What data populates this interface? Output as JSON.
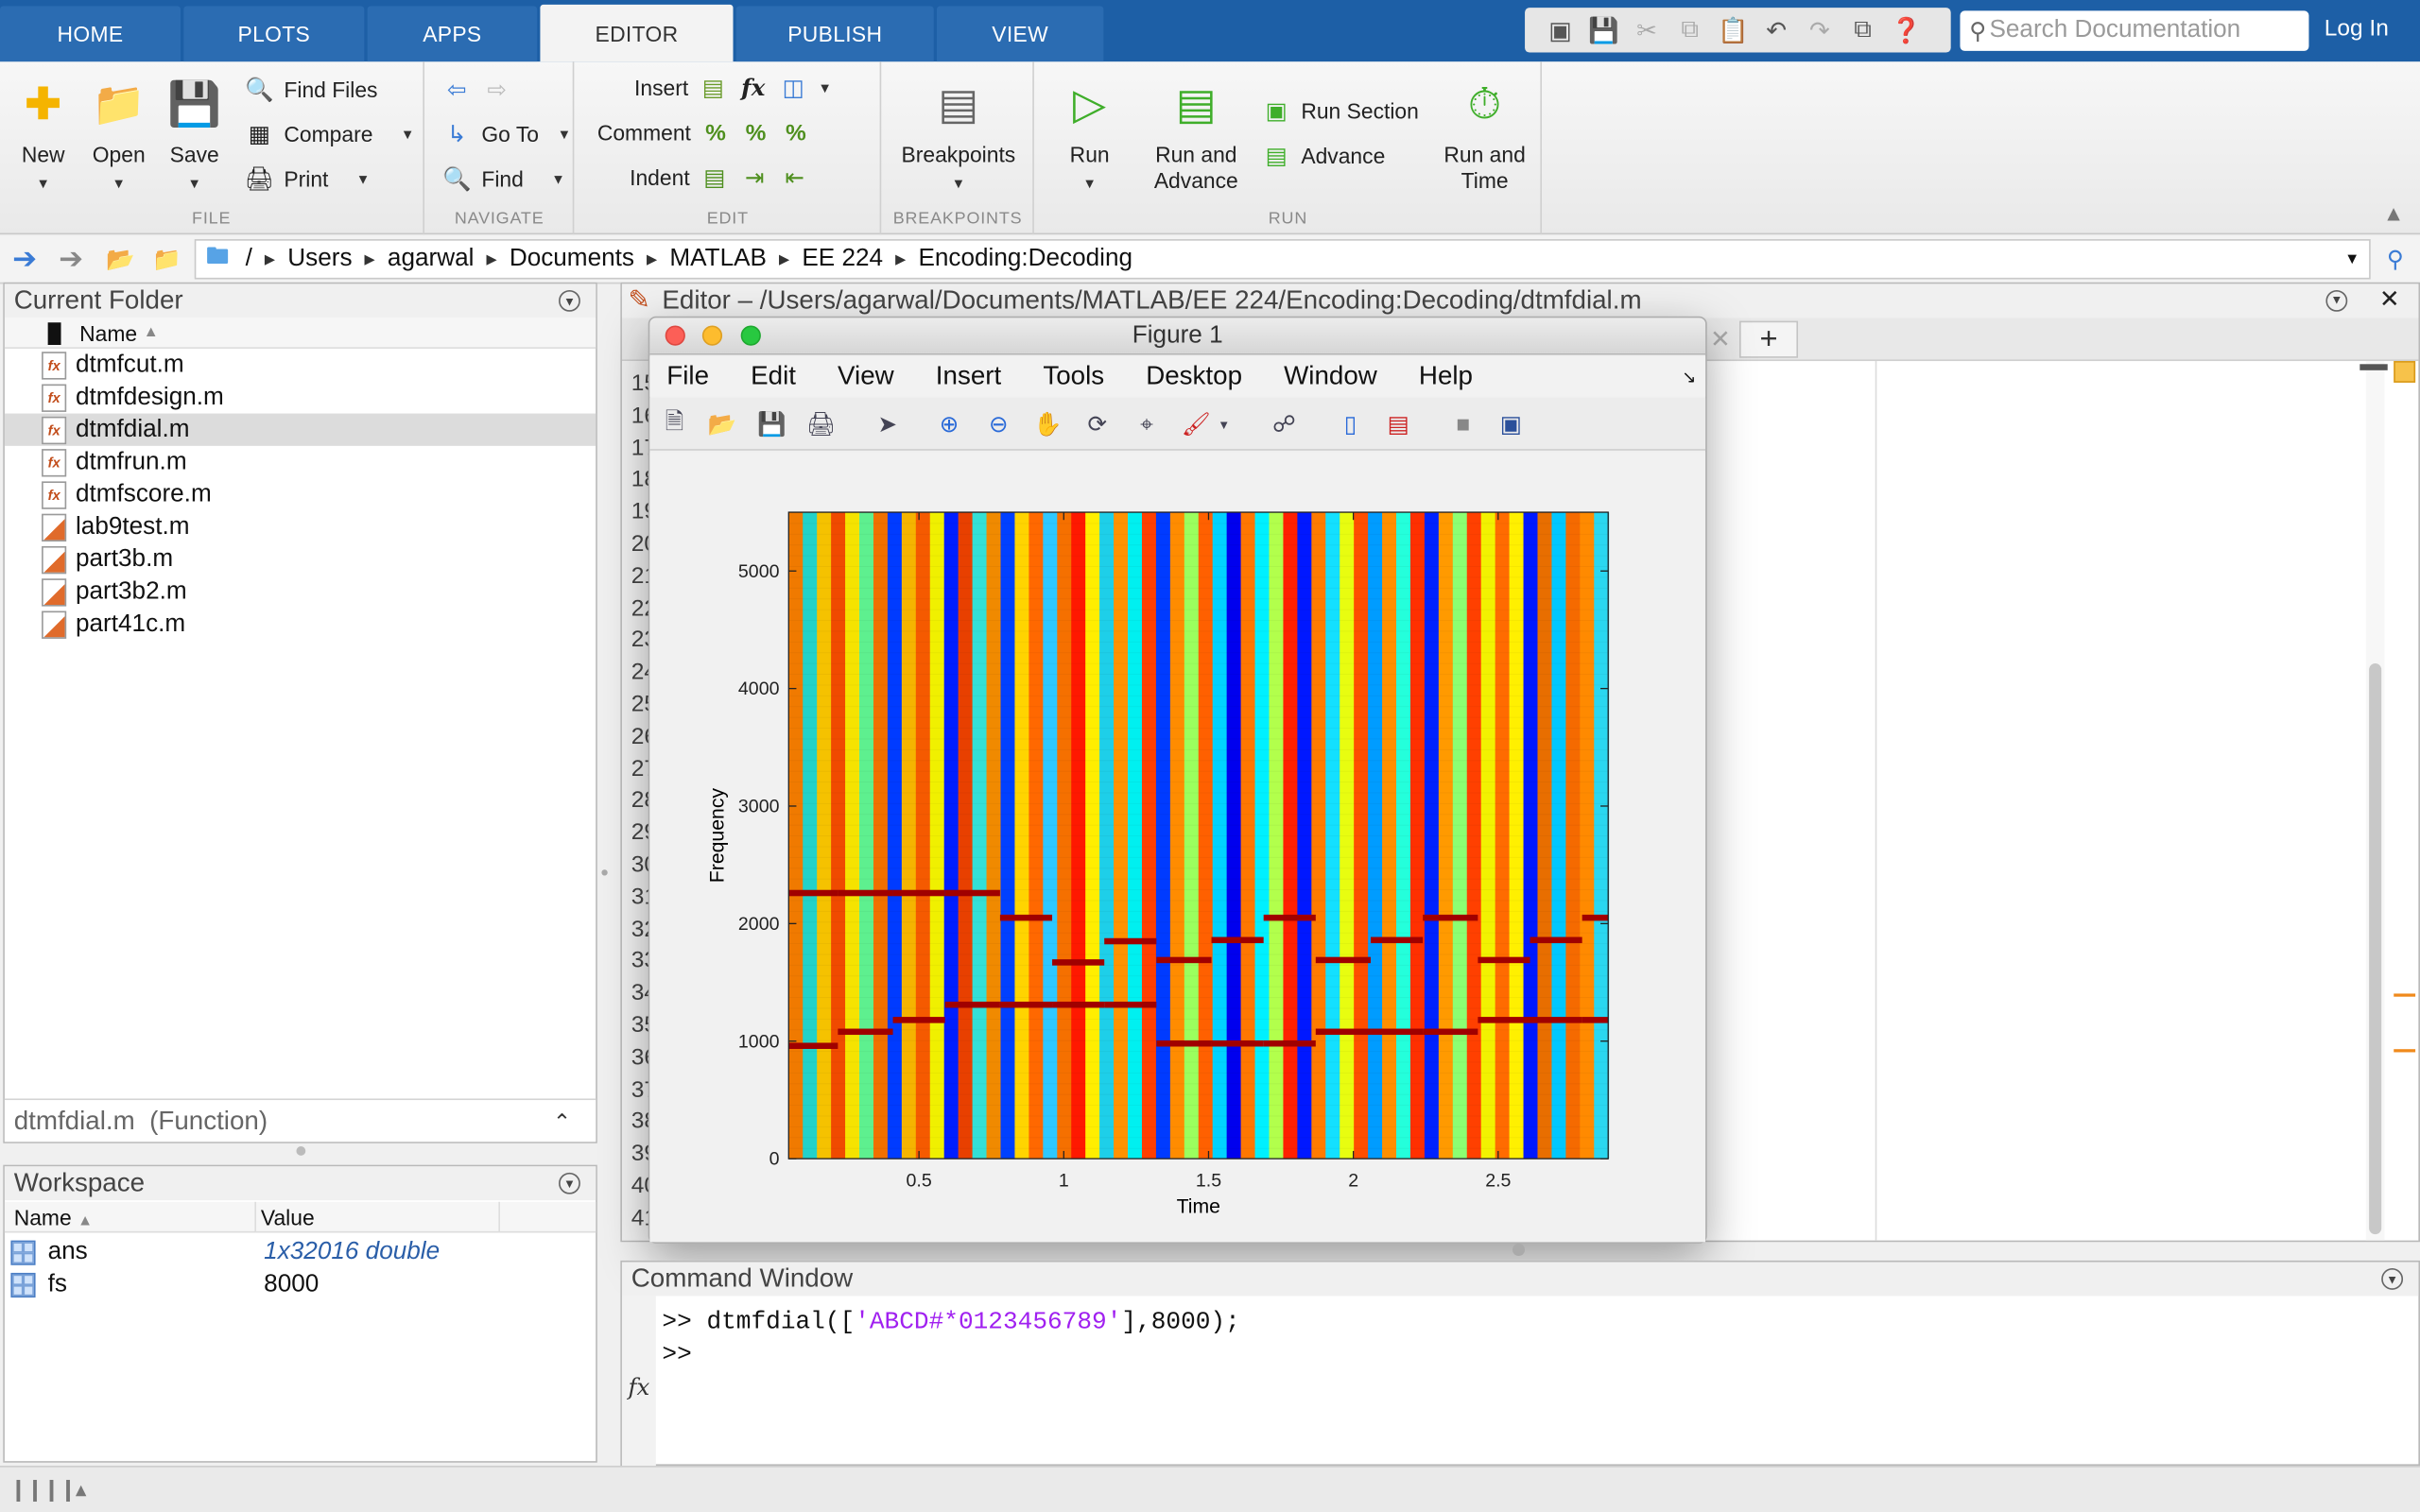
{
  "tabs": [
    {
      "label": "HOME",
      "active": false
    },
    {
      "label": "PLOTS",
      "active": false
    },
    {
      "label": "APPS",
      "active": false
    },
    {
      "label": "EDITOR",
      "active": true
    },
    {
      "label": "PUBLISH",
      "active": false
    },
    {
      "label": "VIEW",
      "active": false
    }
  ],
  "search": {
    "placeholder": "Search Documentation"
  },
  "login_label": "Log In",
  "ribbon": {
    "file": {
      "title": "FILE",
      "new": "New",
      "open": "Open",
      "save": "Save",
      "find_files": "Find Files",
      "compare": "Compare",
      "print": "Print"
    },
    "navigate": {
      "title": "NAVIGATE",
      "go_to": "Go To",
      "find": "Find"
    },
    "edit": {
      "title": "EDIT",
      "insert": "Insert",
      "comment": "Comment",
      "indent": "Indent",
      "fx": "fx"
    },
    "breakpoints": {
      "title": "BREAKPOINTS",
      "label": "Breakpoints"
    },
    "run": {
      "title": "RUN",
      "run": "Run",
      "run_advance_1": "Run and",
      "run_advance_2": "Advance",
      "run_section": "Run Section",
      "advance": "Advance",
      "run_time_1": "Run and",
      "run_time_2": "Time"
    }
  },
  "address": {
    "crumbs": [
      "/",
      "Users",
      "agarwal",
      "Documents",
      "MATLAB",
      "EE 224",
      "Encoding:Decoding"
    ]
  },
  "current_folder": {
    "title": "Current Folder",
    "column_name": "Name",
    "sort_indicator": "▲",
    "files": [
      {
        "name": "dtmfcut.m",
        "type": "function",
        "selected": false
      },
      {
        "name": "dtmfdesign.m",
        "type": "function",
        "selected": false
      },
      {
        "name": "dtmfdial.m",
        "type": "function",
        "selected": true
      },
      {
        "name": "dtmfrun.m",
        "type": "function",
        "selected": false
      },
      {
        "name": "dtmfscore.m",
        "type": "function",
        "selected": false
      },
      {
        "name": "lab9test.m",
        "type": "script",
        "selected": false
      },
      {
        "name": "part3b.m",
        "type": "script",
        "selected": false
      },
      {
        "name": "part3b2.m",
        "type": "script",
        "selected": false
      },
      {
        "name": "part41c.m",
        "type": "script",
        "selected": false
      }
    ],
    "details": "dtmfdial.m  (Function)"
  },
  "workspace": {
    "title": "Workspace",
    "col_name": "Name",
    "col_value": "Value",
    "sort_indicator": "▲",
    "vars": [
      {
        "name": "ans",
        "value": "1x32016 double",
        "italic": true
      },
      {
        "name": "fs",
        "value": "8000",
        "italic": false
      }
    ]
  },
  "editor": {
    "title": "Editor – /Users/agarwal/Documents/MATLAB/EE 224/Encoding:Decoding/dtmfdial.m",
    "add_tab": "+",
    "line_numbers": [
      "15",
      "16",
      "17",
      "18",
      "19",
      "20",
      "21",
      "22",
      "23",
      "24",
      "25",
      "26",
      "27",
      "28",
      "29",
      "30",
      "31",
      "32",
      "33",
      "34",
      "35",
      "36",
      "37",
      "38",
      "39",
      "40",
      "41"
    ],
    "line_numbers_visible": [
      "1!",
      "1(",
      "1!",
      "1!",
      "2(",
      "2:",
      "2:",
      "2:",
      "2:",
      "2!",
      "2(",
      "2:",
      "2!",
      "2!",
      "3(",
      "3:",
      "3:",
      "3:",
      "3:",
      "3!",
      "3(",
      "3:",
      "3!",
      "3!",
      "4(",
      "4:"
    ]
  },
  "figure": {
    "title": "Figure 1",
    "menu": [
      "File",
      "Edit",
      "View",
      "Insert",
      "Tools",
      "Desktop",
      "Window",
      "Help"
    ],
    "toolbar_icons": [
      "new-figure-icon",
      "open-file-icon",
      "save-figure-icon",
      "print-icon",
      "pointer-icon",
      "zoom-in-icon",
      "zoom-out-icon",
      "pan-icon",
      "rotate-3d-icon",
      "data-cursor-icon",
      "brush-icon",
      "brush-dropdown-icon",
      "link-plot-icon",
      "colorbar-icon",
      "legend-icon",
      "hide-plot-tools-icon",
      "show-plot-tools-icon"
    ]
  },
  "chart_data": {
    "type": "heatmap",
    "title": "",
    "xlabel": "Time",
    "ylabel": "Frequency",
    "xlim": [
      0.05,
      2.88
    ],
    "ylim": [
      0,
      5500
    ],
    "xticks": [
      0.5,
      1,
      1.5,
      2,
      2.5
    ],
    "xtick_labels": [
      "0.5",
      "1",
      "1.5",
      "2",
      "2.5"
    ],
    "yticks": [
      0,
      1000,
      2000,
      3000,
      4000,
      5000
    ],
    "ytick_labels": [
      "0",
      "1000",
      "2000",
      "3000",
      "4000",
      "5000"
    ],
    "colormap": "jet",
    "stripe_colors": [
      "#f07a00",
      "#23d2c9",
      "#f5c200",
      "#f04a00",
      "#f5e300",
      "#5ef08f",
      "#f07000",
      "#003bff",
      "#f5b400",
      "#f55a00",
      "#f0f000",
      "#001eff",
      "#e84000",
      "#33e0d6",
      "#f08a00",
      "#0040ff",
      "#ffd400",
      "#ff6800",
      "#2ec8ff",
      "#f57000",
      "#ff1800",
      "#ffee00",
      "#1ecfe9",
      "#ff9200",
      "#00f0f0",
      "#ff3f00",
      "#003bff",
      "#ff8c00",
      "#9bff5e",
      "#ff6000",
      "#00d2ff",
      "#0000ee",
      "#ff7700",
      "#00f0ff",
      "#b2ff4c",
      "#ff2000",
      "#0018ff",
      "#ff7b00",
      "#13e0ff",
      "#e8fd10",
      "#ff4e00",
      "#009cff",
      "#ff8f00",
      "#24ffdb",
      "#ff3000",
      "#0022ff",
      "#ff9a00",
      "#8cff72",
      "#ff4000",
      "#f2f200",
      "#ff6b00",
      "#fff000",
      "#0018ff",
      "#e86e00",
      "#00c7ff",
      "#f56a00",
      "#ff8a00",
      "#2ad7f0"
    ],
    "dtmf_tones": [
      {
        "key": "A",
        "t": [
          0.05,
          0.22
        ],
        "low": 960,
        "high": 2260
      },
      {
        "key": "B",
        "t": [
          0.22,
          0.41
        ],
        "low": 1080,
        "high": 2260
      },
      {
        "key": "C",
        "t": [
          0.41,
          0.59
        ],
        "low": 1180,
        "high": 2260
      },
      {
        "key": "D",
        "t": [
          0.59,
          0.78
        ],
        "low": 1310,
        "high": 2260
      },
      {
        "key": "#",
        "t": [
          0.78,
          0.96
        ],
        "low": 1310,
        "high": 2050
      },
      {
        "key": "*",
        "t": [
          0.96,
          1.14
        ],
        "low": 1310,
        "high": 1670
      },
      {
        "key": "0",
        "t": [
          1.14,
          1.32
        ],
        "low": 1310,
        "high": 1850
      },
      {
        "key": "1",
        "t": [
          1.32,
          1.51
        ],
        "low": 980,
        "high": 1690
      },
      {
        "key": "2",
        "t": [
          1.51,
          1.69
        ],
        "low": 980,
        "high": 1860
      },
      {
        "key": "3",
        "t": [
          1.69,
          1.87
        ],
        "low": 980,
        "high": 2050
      },
      {
        "key": "4",
        "t": [
          1.87,
          2.06
        ],
        "low": 1080,
        "high": 1690
      },
      {
        "key": "5",
        "t": [
          2.06,
          2.24
        ],
        "low": 1080,
        "high": 1860
      },
      {
        "key": "6",
        "t": [
          2.24,
          2.43
        ],
        "low": 1080,
        "high": 2050
      },
      {
        "key": "7",
        "t": [
          2.43,
          2.61
        ],
        "low": 1180,
        "high": 1690
      },
      {
        "key": "8",
        "t": [
          2.61,
          2.79
        ],
        "low": 1180,
        "high": 1860
      },
      {
        "key": "9",
        "t": [
          2.79,
          2.88
        ],
        "low": 1180,
        "high": 2050
      }
    ]
  },
  "command_window": {
    "title": "Command Window",
    "prompt": ">>",
    "line1_prefix": "dtmfdial([",
    "line1_string": "'ABCD#*0123456789'",
    "line1_suffix": "],8000);",
    "fx": "fx"
  }
}
